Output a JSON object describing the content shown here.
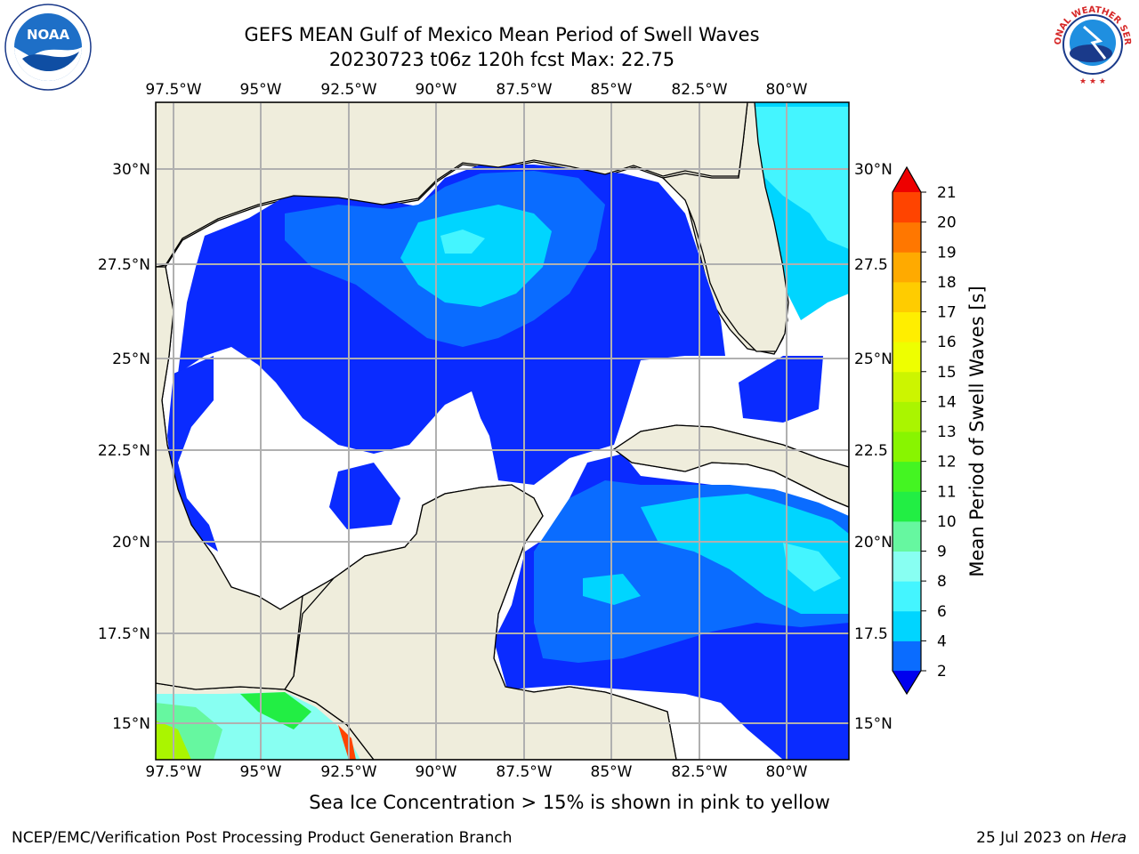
{
  "title": {
    "line1": "GEFS MEAN Gulf of Mexico Mean Period of Swell Waves",
    "line2": "20230723 t06z 120h fcst   Max: 22.75"
  },
  "map": {
    "lon_ticks": [
      "97.5°W",
      "95°W",
      "92.5°W",
      "90°W",
      "87.5°W",
      "85°W",
      "82.5°W",
      "80°W"
    ],
    "lat_ticks_left": [
      "30°N",
      "27.5°N",
      "25°N",
      "22.5°N",
      "20°N",
      "17.5°N",
      "15°N"
    ],
    "lat_ticks_right": [
      "30°N",
      "27.5",
      "25°N",
      "22.5",
      "20°N",
      "17.5",
      "15°N"
    ],
    "colors": {
      "land": "#efeddc",
      "ocean_blank": "#ffffff",
      "grid": "#b0b0b0"
    }
  },
  "colorbar": {
    "label": "Mean Period of Swell Waves [s]",
    "ticks": [
      "2",
      "4",
      "6",
      "8",
      "9",
      "10",
      "11",
      "12",
      "13",
      "14",
      "15",
      "16",
      "17",
      "18",
      "19",
      "20",
      "21"
    ],
    "colors": [
      "#0a2bff",
      "#0a6cff",
      "#00d5ff",
      "#44f5ff",
      "#88fff2",
      "#66f7a0",
      "#22ee44",
      "#44f522",
      "#88f500",
      "#aaf500",
      "#ccf500",
      "#eeff00",
      "#ffee00",
      "#ffcc00",
      "#ffaa00",
      "#ff7700",
      "#ff4400",
      "#ff1100"
    ],
    "extend_low_color": "#0000ee",
    "extend_high_color": "#ee0000"
  },
  "caption": "Sea Ice Concentration > 15% is shown in pink to yellow",
  "footer": {
    "left": "NCEP/EMC/Verification Post Processing Product Generation Branch",
    "right_prefix": "25 Jul 2023 on ",
    "right_host": "Hera"
  },
  "logos": {
    "noaa_text": "NOAA",
    "nws_text": "NATIONAL WEATHER SERVICE"
  }
}
